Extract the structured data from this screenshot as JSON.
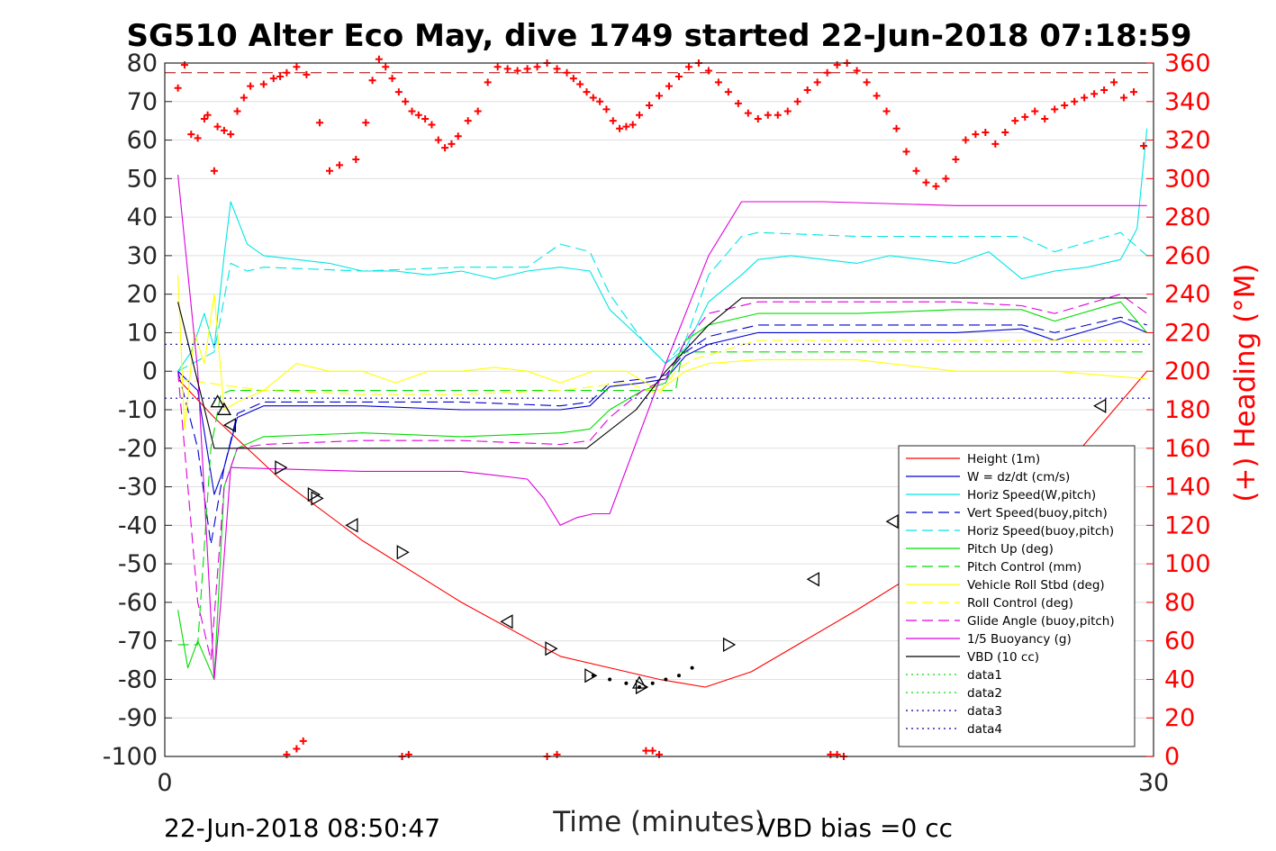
{
  "chart_data": {
    "type": "line",
    "title": "SG510 Alter Eco May, dive 1749 started 22-Jun-2018 07:18:59",
    "xlabel": "Time (minutes)",
    "ylabel_right": "(+) Heading (°M)",
    "xlim": [
      0,
      30
    ],
    "ylim": [
      -100,
      80
    ],
    "ylim_right": [
      0,
      360
    ],
    "x_ticks": [
      "0",
      "30"
    ],
    "y_ticks": [
      "80",
      "70",
      "60",
      "50",
      "40",
      "30",
      "20",
      "10",
      "0",
      "-10",
      "-20",
      "-30",
      "-40",
      "-50",
      "-60",
      "-70",
      "-80",
      "-90",
      "-100"
    ],
    "y_ticks_right": [
      "360",
      "340",
      "320",
      "300",
      "280",
      "260",
      "240",
      "220",
      "200",
      "180",
      "160",
      "140",
      "120",
      "100",
      "80",
      "60",
      "40",
      "20",
      "0"
    ],
    "grid": true,
    "legend_position": "bottom-right",
    "footer_left": "22-Jun-2018 08:50:47",
    "footer_right": "VBD bias =0 cc",
    "series": [
      {
        "name": "Height (1m)",
        "color": "#ff0000",
        "style": "solid",
        "x": [
          0.4,
          1.5,
          3.5,
          6,
          9,
          12,
          15,
          16.4,
          17.8,
          21,
          24,
          27,
          29.8
        ],
        "y": [
          -2,
          -12,
          -28,
          -44,
          -60,
          -74,
          -80,
          -82,
          -78,
          -62,
          -46,
          -28,
          0
        ]
      },
      {
        "name": "W = dz/dt (cm/s)",
        "color": "#0000d0",
        "style": "solid",
        "x": [
          0.4,
          1.0,
          1.5,
          1.8,
          2.2,
          3,
          6,
          9,
          12,
          12.9,
          13.5,
          14.5,
          15.2,
          15.8,
          16.5,
          18,
          21,
          24,
          26,
          27,
          29,
          29.8
        ],
        "y": [
          0,
          -5,
          -32,
          -25,
          -12,
          -9,
          -9,
          -10,
          -10,
          -9,
          -4,
          -3,
          -2,
          4,
          7,
          10,
          10,
          10,
          11,
          8,
          13,
          10
        ]
      },
      {
        "name": "Horiz Speed(W,pitch)",
        "color": "#00e5e5",
        "style": "solid",
        "x": [
          0.4,
          0.8,
          1.2,
          1.5,
          1.8,
          2.0,
          2.5,
          3,
          4,
          5,
          6,
          7,
          8,
          9,
          10,
          11,
          12,
          12.9,
          13.5,
          14.5,
          15.2,
          15.8,
          16.5,
          17.5,
          18,
          19,
          20,
          21,
          22,
          23,
          24,
          25,
          26,
          27,
          28,
          29,
          29.5,
          29.8
        ],
        "y": [
          0,
          5,
          15,
          6,
          30,
          44,
          33,
          30,
          29,
          28,
          26,
          26,
          25,
          26,
          24,
          26,
          27,
          26,
          16,
          8,
          2,
          6,
          18,
          25,
          29,
          30,
          29,
          28,
          30,
          29,
          28,
          31,
          24,
          26,
          27,
          29,
          37,
          63
        ]
      },
      {
        "name": "Vert Speed(buoy,pitch)",
        "color": "#0000d0",
        "style": "dashed",
        "x": [
          0.4,
          1.0,
          1.4,
          1.8,
          2.2,
          3,
          6,
          9,
          12,
          12.9,
          13.5,
          14.5,
          15.2,
          15.8,
          16.5,
          18,
          21,
          24,
          26,
          27,
          29,
          29.8
        ],
        "y": [
          0,
          -20,
          -45,
          -25,
          -11,
          -8,
          -8,
          -8,
          -9,
          -8,
          -3,
          -2,
          -1,
          5,
          9,
          12,
          12,
          12,
          12,
          10,
          14,
          12
        ]
      },
      {
        "name": "Horiz Speed(buoy,pitch)",
        "color": "#00e5e5",
        "style": "dashed",
        "x": [
          0.4,
          1.5,
          2,
          2.5,
          3,
          6,
          9,
          11,
          12,
          12.9,
          13.5,
          14.5,
          15.2,
          15.8,
          16.5,
          17.5,
          18,
          21,
          24,
          26,
          27,
          29,
          29.8
        ],
        "y": [
          0,
          5,
          28,
          26,
          27,
          26,
          27,
          27,
          33,
          31,
          20,
          8,
          2,
          8,
          25,
          35,
          36,
          35,
          35,
          35,
          31,
          36,
          30
        ]
      },
      {
        "name": "Pitch Up (deg)",
        "color": "#00dd00",
        "style": "solid",
        "x": [
          0.4,
          0.7,
          1.0,
          1.5,
          1.8,
          2.2,
          3,
          6,
          9,
          12,
          12.9,
          13.5,
          14.5,
          15.2,
          15.8,
          16.5,
          18,
          21,
          24,
          26,
          27,
          29,
          29.8
        ],
        "y": [
          -62,
          -77,
          -70,
          -80,
          -30,
          -20,
          -17,
          -16,
          -17,
          -16,
          -15,
          -10,
          -5,
          -3,
          8,
          12,
          15,
          15,
          16,
          16,
          13,
          18,
          10
        ]
      },
      {
        "name": "Pitch Control (mm)",
        "color": "#00dd00",
        "style": "dashed",
        "x": [
          0.4,
          1.0,
          1.4,
          1.7,
          2.0,
          12.8,
          13.0,
          15.5,
          15.7,
          29.8
        ],
        "y": [
          -71,
          -71,
          -20,
          -6,
          -5,
          -5,
          -5,
          -5,
          5,
          5
        ]
      },
      {
        "name": "Vehicle Roll Stbd (deg)",
        "color": "#ffff00",
        "style": "solid",
        "x": [
          0.4,
          0.6,
          0.9,
          1.2,
          1.5,
          1.8,
          2.2,
          3,
          4,
          5,
          6,
          7,
          8,
          9,
          10,
          11,
          12,
          13,
          14,
          15,
          15.8,
          16.5,
          18,
          21,
          24,
          27,
          29.8
        ],
        "y": [
          25,
          -15,
          10,
          2,
          20,
          -10,
          -8,
          -5,
          2,
          0,
          0,
          -3,
          0,
          0,
          1,
          0,
          -3,
          0,
          0,
          -5,
          0,
          2,
          3,
          3,
          0,
          0,
          -2
        ]
      },
      {
        "name": "Roll Control (deg)",
        "color": "#ffff00",
        "style": "dashed",
        "x": [
          0.4,
          3,
          6,
          9,
          12,
          13,
          14,
          15,
          15.5,
          16,
          18,
          21,
          24,
          27,
          29.8
        ],
        "y": [
          -2,
          -5,
          -6,
          -6,
          -5,
          -4,
          -3,
          -6,
          0,
          3,
          8,
          8,
          8,
          8,
          8
        ]
      },
      {
        "name": "Glide Angle (buoy,pitch)",
        "color": "#dd00dd",
        "style": "dashed",
        "x": [
          0.4,
          1.0,
          1.4,
          1.8,
          2.2,
          3,
          6,
          9,
          12,
          12.9,
          13.5,
          14.5,
          15.2,
          15.8,
          16.5,
          18,
          21,
          24,
          26,
          27,
          29,
          29.8
        ],
        "y": [
          0,
          -60,
          -75,
          -30,
          -20,
          -19,
          -18,
          -18,
          -19,
          -18,
          -12,
          -5,
          -2,
          8,
          15,
          18,
          18,
          18,
          17,
          15,
          20,
          15
        ]
      },
      {
        "name": "1/5 Buoyancy (g)",
        "color": "#dd00dd",
        "style": "solid",
        "x": [
          0.4,
          1.0,
          1.5,
          1.7,
          2.0,
          6,
          9,
          10,
          11,
          11.5,
          12.0,
          12.5,
          13.0,
          13.5,
          15.2,
          16.5,
          17.5,
          20,
          24,
          27,
          29.8
        ],
        "y": [
          51,
          0,
          -80,
          -60,
          -25,
          -26,
          -26,
          -27,
          -28,
          -33,
          -40,
          -38,
          -37,
          -37,
          2,
          30,
          44,
          44,
          43,
          43,
          43
        ]
      },
      {
        "name": "VBD (10 cc)",
        "color": "#000000",
        "style": "solid",
        "x": [
          0.4,
          1.5,
          2.0,
          12.8,
          14.3,
          15.2,
          16.5,
          17.5,
          29.8
        ],
        "y": [
          18,
          -20,
          -20,
          -20,
          -10,
          0,
          12,
          19,
          19
        ]
      },
      {
        "name": "data1",
        "color": "#00dd00",
        "style": "dotted",
        "x": [],
        "y": []
      },
      {
        "name": "data2",
        "color": "#00dd00",
        "style": "dotted",
        "x": [],
        "y": []
      },
      {
        "name": "data3",
        "color": "#0000a0",
        "style": "dotted",
        "x": [
          0,
          30
        ],
        "y": [
          7,
          7
        ]
      },
      {
        "name": "data4",
        "color": "#0000a0",
        "style": "dotted",
        "x": [
          0,
          30
        ],
        "y": [
          -7,
          -7
        ]
      }
    ],
    "reference_lines": [
      {
        "axis": "right",
        "y": 355,
        "color": "#aa0000",
        "style": "dashed"
      }
    ],
    "heading_points": {
      "color": "#ff0000",
      "marker": "+",
      "x": [
        0.4,
        0.6,
        0.8,
        1.0,
        1.2,
        1.3,
        1.5,
        1.6,
        1.8,
        2.0,
        2.2,
        2.4,
        2.6,
        3.0,
        3.3,
        3.5,
        3.7,
        4.0,
        4.3,
        4.7,
        5.0,
        5.3,
        5.8,
        6.1,
        6.3,
        6.5,
        6.7,
        6.9,
        7.1,
        7.3,
        7.5,
        7.7,
        7.9,
        8.1,
        8.3,
        8.5,
        8.7,
        8.9,
        9.2,
        9.5,
        9.8,
        10.1,
        10.4,
        10.7,
        11.0,
        11.3,
        11.6,
        11.9,
        12.2,
        12.4,
        12.6,
        12.8,
        13.0,
        13.2,
        13.4,
        13.6,
        13.8,
        14.0,
        14.2,
        14.4,
        14.7,
        15.0,
        15.3,
        15.6,
        15.9,
        16.2,
        16.5,
        16.8,
        17.1,
        17.4,
        17.7,
        18.0,
        18.3,
        18.6,
        18.9,
        19.2,
        19.5,
        19.8,
        20.1,
        20.4,
        20.7,
        21.0,
        21.3,
        21.6,
        21.9,
        22.2,
        22.5,
        22.8,
        23.1,
        23.4,
        23.7,
        24.0,
        24.3,
        24.6,
        24.9,
        25.2,
        25.5,
        25.8,
        26.1,
        26.4,
        26.7,
        27.0,
        27.3,
        27.6,
        27.9,
        28.2,
        28.5,
        28.8,
        29.1,
        29.4,
        29.7,
        3.7,
        4.0,
        4.2,
        7.2,
        7.4,
        11.6,
        11.9,
        14.6,
        14.8,
        15.0,
        20.2,
        20.4,
        20.6
      ],
      "y": [
        347,
        359,
        323,
        321,
        331,
        333,
        304,
        327,
        325,
        323,
        335,
        342,
        348,
        349,
        352,
        353,
        355,
        358,
        354,
        329,
        304,
        307,
        310,
        329,
        351,
        362,
        358,
        352,
        345,
        340,
        335,
        333,
        331,
        328,
        320,
        316,
        318,
        322,
        330,
        335,
        350,
        358,
        357,
        356,
        357,
        358,
        360,
        357,
        355,
        352,
        349,
        345,
        342,
        340,
        336,
        330,
        326,
        327,
        328,
        333,
        338,
        343,
        348,
        353,
        358,
        360,
        356,
        350,
        345,
        339,
        334,
        331,
        333,
        333,
        335,
        340,
        346,
        350,
        355,
        359,
        360,
        356,
        350,
        343,
        335,
        326,
        314,
        304,
        298,
        296,
        300,
        310,
        320,
        323,
        324,
        318,
        324,
        330,
        332,
        335,
        331,
        336,
        338,
        340,
        342,
        344,
        346,
        350,
        342,
        345,
        317,
        1,
        4,
        8,
        0,
        1,
        0,
        1,
        3,
        3,
        1,
        1,
        1,
        0
      ]
    },
    "markers": {
      "color": "#000000",
      "x": [
        1.6,
        1.8,
        2.0,
        3.5,
        4.5,
        4.6,
        5.7,
        7.2,
        10.4,
        11.7,
        12.9,
        14.4,
        14.45,
        17.1,
        19.7,
        22.1,
        28.4
      ],
      "y": [
        -8,
        -10,
        -14,
        -25,
        -32,
        -33,
        -40,
        -47,
        -65,
        -72,
        -79,
        -81,
        -82,
        -71,
        -54,
        -39,
        -9
      ],
      "shapes": [
        "up",
        "up",
        "left",
        "right",
        "right",
        "right",
        "left",
        "right",
        "left",
        "right",
        "right",
        "up",
        "right",
        "right",
        "left",
        "left",
        "left"
      ]
    },
    "bottom_dotted": {
      "color": "#000000",
      "x": [
        13.0,
        13.5,
        14.0,
        14.4,
        14.8,
        15.2,
        15.6,
        16.0
      ],
      "y": [
        -79,
        -80,
        -81,
        -82,
        -81,
        -80,
        -79,
        -77
      ]
    }
  }
}
